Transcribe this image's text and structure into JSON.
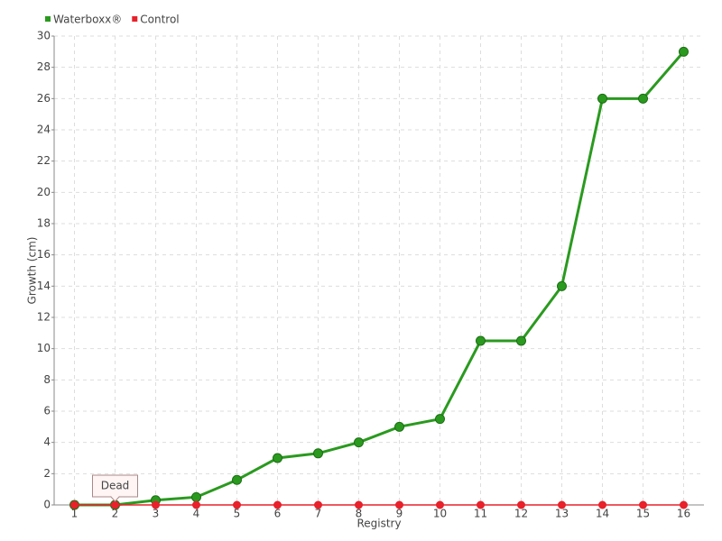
{
  "chart_data": {
    "type": "line",
    "x_label": "Registry",
    "y_label": "Growth (cm)",
    "categories": [
      "1",
      "2",
      "3",
      "4",
      "5",
      "6",
      "7",
      "8",
      "9",
      "10",
      "11",
      "12",
      "13",
      "14",
      "15",
      "16"
    ],
    "series": [
      {
        "name": "Waterboxx®",
        "color": "#2a9a1f",
        "values": [
          0,
          0,
          0.3,
          0.5,
          1.6,
          3,
          3.3,
          4,
          5,
          5.5,
          10.5,
          10.5,
          14,
          26,
          26,
          29
        ]
      },
      {
        "name": "Control",
        "color": "#e8212b",
        "values": [
          0,
          0,
          0,
          0,
          0,
          0,
          0,
          0,
          0,
          0,
          0,
          0,
          0,
          0,
          0,
          0
        ]
      }
    ],
    "ylim": [
      0,
      30
    ],
    "yticks": [
      0,
      2,
      4,
      6,
      8,
      10,
      12,
      14,
      16,
      18,
      20,
      22,
      24,
      26,
      28,
      30
    ],
    "grid": true,
    "legend": "top-left",
    "annotations": [
      {
        "text": "Dead",
        "x": "2",
        "y": 0
      }
    ]
  }
}
